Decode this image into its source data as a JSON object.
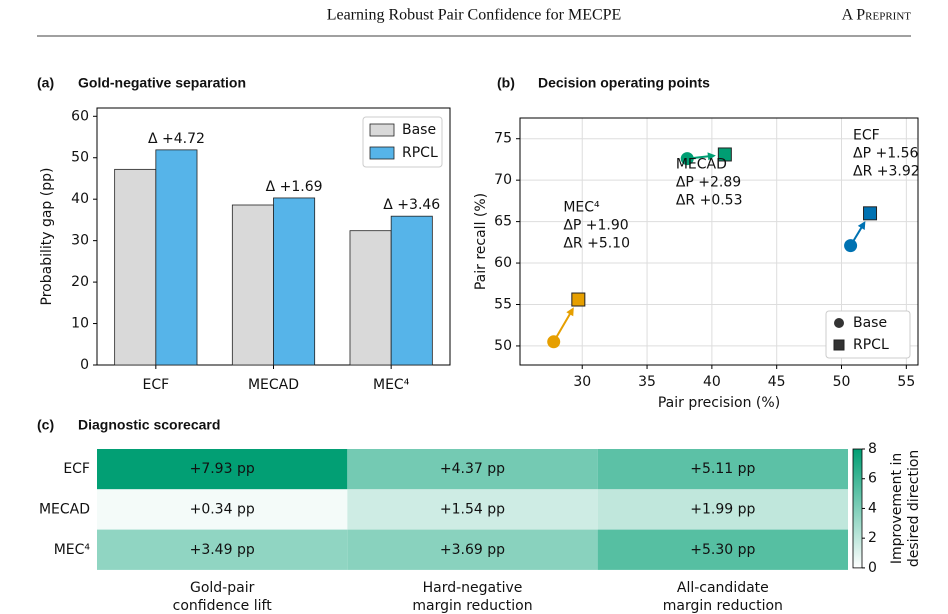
{
  "header": {
    "title": "Learning Robust Pair Confidence for MECPE",
    "right": "A Preprint"
  },
  "chart_data": [
    {
      "type": "bar",
      "panel": "(a)",
      "title": "Gold-negative separation",
      "ylabel": "Probability gap (pp)",
      "categories": [
        "ECF",
        "MECAD",
        "MEC⁴"
      ],
      "series": [
        {
          "name": "Base",
          "color": "#d9d9d9",
          "values": [
            47.2,
            38.6,
            32.4
          ]
        },
        {
          "name": "RPCL",
          "color": "#56b4e9",
          "values": [
            51.9,
            40.3,
            35.9
          ]
        }
      ],
      "annotations": [
        "Δ +4.72",
        "Δ +1.69",
        "Δ +3.46"
      ],
      "ylim": [
        0,
        62
      ],
      "yticks": [
        0,
        10,
        20,
        30,
        40,
        50,
        60
      ],
      "legend": "upper right"
    },
    {
      "type": "scatter",
      "panel": "(b)",
      "title": "Decision operating points",
      "xlabel": "Pair precision (%)",
      "ylabel": "Pair recall (%)",
      "markers": [
        "Base",
        "RPCL"
      ],
      "groups": [
        {
          "name": "ECF",
          "color": "#0072b2",
          "x": [
            50.7,
            52.2
          ],
          "y": [
            62.1,
            66.0
          ],
          "notes": [
            "ΔP +1.56",
            "ΔR +3.92"
          ]
        },
        {
          "name": "MECAD",
          "color": "#009e73",
          "x": [
            38.1,
            41.0
          ],
          "y": [
            72.6,
            73.1
          ],
          "notes": [
            "ΔP +2.89",
            "ΔR +0.53"
          ]
        },
        {
          "name": "MEC⁴",
          "color": "#e69f00",
          "x": [
            27.8,
            29.7
          ],
          "y": [
            50.5,
            55.6
          ],
          "notes": [
            "ΔP +1.90",
            "ΔR +5.10"
          ]
        }
      ],
      "xlim": [
        25.2,
        55.9
      ],
      "xticks": [
        30,
        35,
        40,
        45,
        50,
        55
      ],
      "ylim": [
        47.7,
        77.5
      ],
      "yticks": [
        50,
        55,
        60,
        65,
        70,
        75
      ],
      "grid": true,
      "legend": "lower right"
    },
    {
      "type": "heatmap",
      "panel": "(c)",
      "title": "Diagnostic scorecard",
      "rows": [
        "ECF",
        "MECAD",
        "MEC⁴"
      ],
      "columns": [
        [
          "Gold-pair",
          "confidence lift"
        ],
        [
          "Hard-negative",
          "margin reduction"
        ],
        [
          "All-candidate",
          "margin reduction"
        ]
      ],
      "values": [
        [
          7.93,
          4.37,
          5.11
        ],
        [
          0.34,
          1.54,
          1.99
        ],
        [
          3.49,
          3.69,
          5.3
        ]
      ],
      "value_labels": [
        [
          "+7.93 pp",
          "+4.37 pp",
          "+5.11 pp"
        ],
        [
          "+0.34 pp",
          "+1.54 pp",
          "+1.99 pp"
        ],
        [
          "+3.49 pp",
          "+3.69 pp",
          "+5.30 pp"
        ]
      ],
      "color": "#009e73",
      "clim": [
        0,
        8
      ],
      "cticks": [
        0,
        2,
        4,
        6,
        8
      ],
      "clabel": [
        "Improvement in",
        "desired direction"
      ]
    }
  ]
}
